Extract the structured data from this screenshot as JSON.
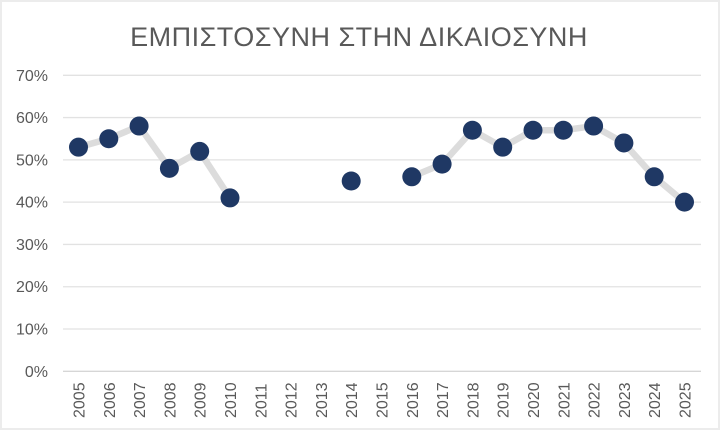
{
  "chart_data": {
    "type": "line",
    "title": "ΕΜΠΙΣΤΟΣΥΝΗ ΣΤΗΝ ΔΙΚΑΙΟΣΥΝΗ",
    "categories": [
      "2005",
      "2006",
      "2007",
      "2008",
      "2009",
      "2010",
      "2011",
      "2012",
      "2013",
      "2014",
      "2015",
      "2016",
      "2017",
      "2018",
      "2019",
      "2020",
      "2021",
      "2022",
      "2023",
      "2024",
      "2025"
    ],
    "values": [
      53,
      55,
      58,
      48,
      52,
      41,
      null,
      null,
      null,
      45,
      null,
      46,
      49,
      57,
      53,
      57,
      57,
      58,
      54,
      46,
      40
    ],
    "y_ticks": [
      "0%",
      "10%",
      "20%",
      "30%",
      "40%",
      "50%",
      "60%",
      "70%"
    ],
    "ylim": [
      0,
      70
    ],
    "y_step": 10,
    "xlabel": "",
    "ylabel": "",
    "grid": true,
    "legend": false,
    "notes": "points missing for 2011-2013 and 2015 create gaps in the connector line",
    "colors": {
      "marker": "#1f3864",
      "connector": "#dcdcdc",
      "gridline": "#e2e2e2",
      "baseline": "#d6d6d6",
      "axis_text": "#595959",
      "title_text": "#595959",
      "background": "#ffffff",
      "frame_border": "#ececec"
    }
  }
}
